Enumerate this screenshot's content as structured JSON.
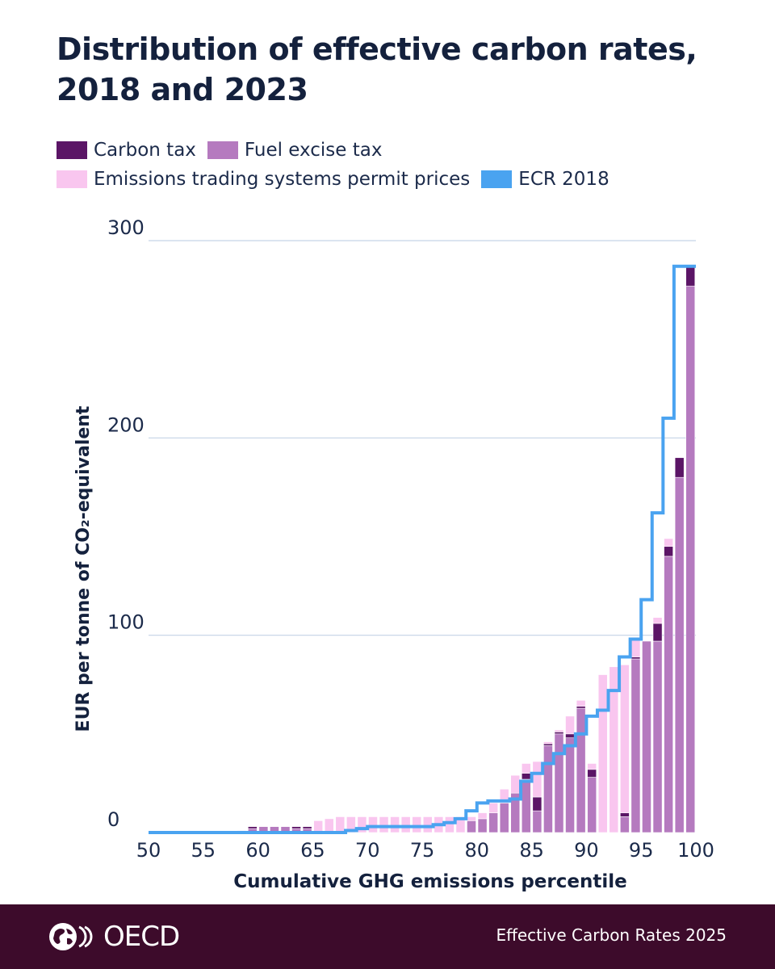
{
  "chart_data": {
    "type": "bar",
    "title": "Distribution of effective carbon rates, 2018 and 2023",
    "xlabel": "Cumulative GHG emissions percentile",
    "ylabel": "EUR per tonne of CO₂-equivalent",
    "xlim": [
      50,
      100
    ],
    "ylim": [
      0,
      300
    ],
    "xticks": [
      50,
      55,
      60,
      65,
      70,
      75,
      80,
      85,
      90,
      95,
      100
    ],
    "yticks": [
      0,
      100,
      200,
      300
    ],
    "grid": "horizontal",
    "legend_position": "top",
    "colors": {
      "carbon_tax": "#5b1566",
      "fuel_excise_tax": "#b57abf",
      "ets": "#f9c6ef",
      "ecr_2018": "#4aa3f0",
      "grid": "#c5d3e6",
      "footer": "#3d0b2b"
    },
    "x": [
      59,
      60,
      61,
      62,
      63,
      64,
      65,
      66,
      67,
      68,
      69,
      70,
      71,
      72,
      73,
      74,
      75,
      76,
      77,
      78,
      79,
      80,
      81,
      82,
      83,
      84,
      85,
      86,
      87,
      88,
      89,
      90,
      91,
      92,
      93,
      94,
      95,
      96,
      97,
      98,
      99,
      100
    ],
    "series": [
      {
        "name": "Carbon tax",
        "values": [
          0,
          1,
          0,
          0,
          0,
          1,
          1,
          0,
          0,
          0,
          0,
          0,
          0,
          0,
          0,
          0,
          0,
          0,
          0,
          0,
          0,
          0,
          0,
          0,
          0,
          0,
          3,
          7,
          1,
          1,
          2,
          1,
          4,
          0,
          0,
          2,
          1,
          0,
          9,
          5,
          10,
          10
        ]
      },
      {
        "name": "Fuel excise tax",
        "values": [
          0,
          2,
          3,
          3,
          3,
          2,
          2,
          0,
          0,
          0,
          0,
          0,
          0,
          0,
          0,
          0,
          0,
          0,
          0,
          0,
          0,
          6,
          7,
          10,
          15,
          20,
          27,
          11,
          44,
          50,
          48,
          63,
          28,
          0,
          0,
          8,
          88,
          97,
          97,
          140,
          180,
          277
        ]
      },
      {
        "name": "Emissions trading systems permit prices",
        "values": [
          1,
          0,
          0,
          0,
          0,
          0,
          0,
          6,
          7,
          8,
          8,
          8,
          8,
          8,
          8,
          8,
          8,
          8,
          8,
          8,
          8,
          2,
          3,
          5,
          7,
          9,
          5,
          18,
          1,
          1,
          9,
          3,
          3,
          80,
          84,
          75,
          10,
          0,
          3,
          4,
          0,
          0
        ]
      },
      {
        "name": "ECR 2018",
        "values": [
          0,
          0,
          0,
          0,
          0,
          0,
          0,
          0,
          0,
          0,
          1,
          2,
          3,
          3,
          3,
          3,
          3,
          3,
          4,
          5,
          7,
          11,
          15,
          16,
          16,
          17,
          26,
          30,
          35,
          40,
          44,
          50,
          59,
          62,
          72,
          89,
          98,
          118,
          162,
          210,
          287,
          287
        ]
      }
    ]
  },
  "footer": {
    "logo_text": "OECD",
    "source": "Effective Carbon Rates 2025"
  }
}
